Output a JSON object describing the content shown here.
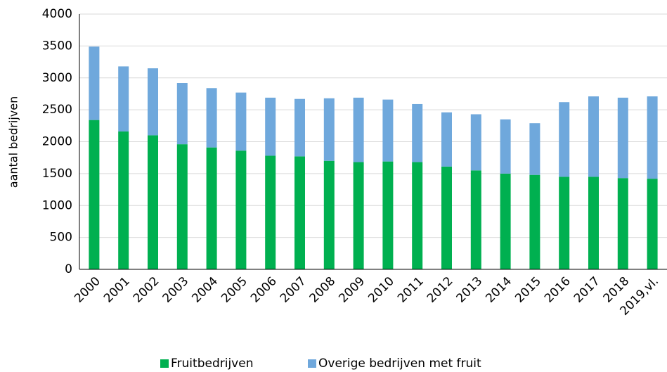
{
  "chart_data": {
    "type": "stacked_bar",
    "y_label": "aantal bedrijven",
    "categories": [
      "2000",
      "2001",
      "2002",
      "2003",
      "2004",
      "2005",
      "2006",
      "2007",
      "2008",
      "2009",
      "2010",
      "2011",
      "2012",
      "2013",
      "2014",
      "2015",
      "2016",
      "2017",
      "2018",
      "2019,vl."
    ],
    "series": [
      {
        "name": "Fruitbedrijven",
        "color": "#00b050",
        "values": [
          2340,
          2160,
          2100,
          1960,
          1910,
          1860,
          1780,
          1770,
          1700,
          1680,
          1690,
          1680,
          1610,
          1550,
          1500,
          1480,
          1450,
          1450,
          1430,
          1420
        ]
      },
      {
        "name": "Overige bedrijven met fruit",
        "color": "#6fa8dc",
        "values": [
          1150,
          1020,
          1050,
          960,
          930,
          910,
          910,
          900,
          980,
          1010,
          970,
          910,
          850,
          880,
          850,
          810,
          1170,
          1260,
          1260,
          1290
        ]
      }
    ],
    "ylim": [
      0,
      4000
    ],
    "yticks": [
      0,
      500,
      1000,
      1500,
      2000,
      2500,
      3000,
      3500,
      4000
    ],
    "grid": true,
    "legend": "bottom"
  }
}
